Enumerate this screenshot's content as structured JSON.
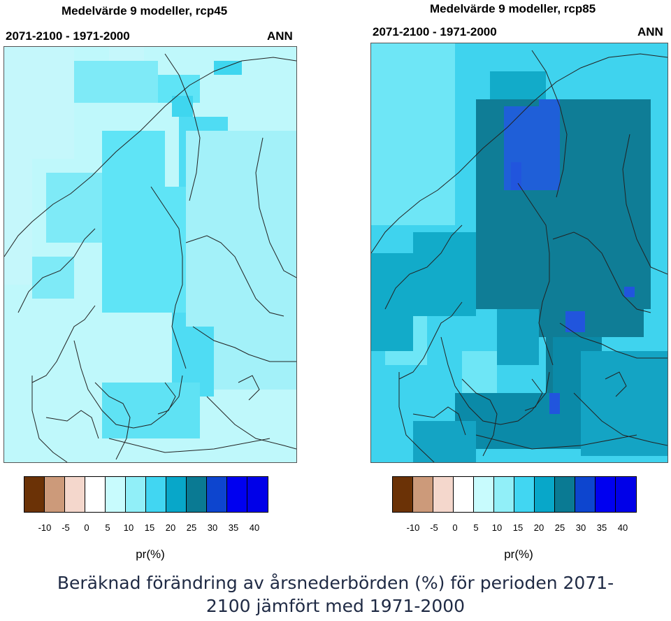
{
  "panels": [
    {
      "title": "Medelvärde 9 modeller, rcp45",
      "period": "2071-2100 - 1971-2000",
      "season": "ANN",
      "base_color": "#bff8fb",
      "regions": [
        {
          "name": "sea-west",
          "color": "#c5f7fb"
        },
        {
          "name": "norway-coast",
          "color": "#7eeaf7"
        },
        {
          "name": "mountains",
          "color": "#5fe4f6"
        },
        {
          "name": "gulf",
          "color": "#4fdcf3"
        },
        {
          "name": "baltic-south",
          "color": "#5fe2f4"
        },
        {
          "name": "finland",
          "color": "#a3f1f9"
        },
        {
          "name": "north-patch",
          "color": "#3fd6ef"
        }
      ]
    },
    {
      "title": "Medelvärde 9 modeller, rcp85",
      "period": "2071-2100 - 1971-2000",
      "season": "ANN",
      "base_color": "#3fd3ee",
      "regions": [
        {
          "name": "sea-west",
          "color": "#6ee6f6"
        },
        {
          "name": "coast",
          "color": "#12abc9"
        },
        {
          "name": "interior",
          "color": "#0f7d96"
        },
        {
          "name": "north-core",
          "color": "#1f5fd8"
        },
        {
          "name": "baltic",
          "color": "#0b8aa8"
        },
        {
          "name": "south",
          "color": "#14a4c4"
        },
        {
          "name": "hotspots",
          "color": "#2155dd"
        }
      ]
    }
  ],
  "legend": {
    "colors": [
      "#6b3206",
      "#cc9a7a",
      "#f4d7cc",
      "#ffffff",
      "#c8fbfd",
      "#91eff8",
      "#41d6f2",
      "#08a7c9",
      "#0a7a93",
      "#0d45cf",
      "#0000f0",
      "#0000e8"
    ],
    "ticks": [
      "-10",
      "-5",
      "0",
      "5",
      "10",
      "15",
      "20",
      "25",
      "30",
      "35",
      "40"
    ],
    "unit": "pr(%)"
  },
  "caption": {
    "line1": "Beräknad förändring av årsnederbörden (%) för perioden 2071-",
    "line2": "2100 jämfört med 1971-2000"
  }
}
